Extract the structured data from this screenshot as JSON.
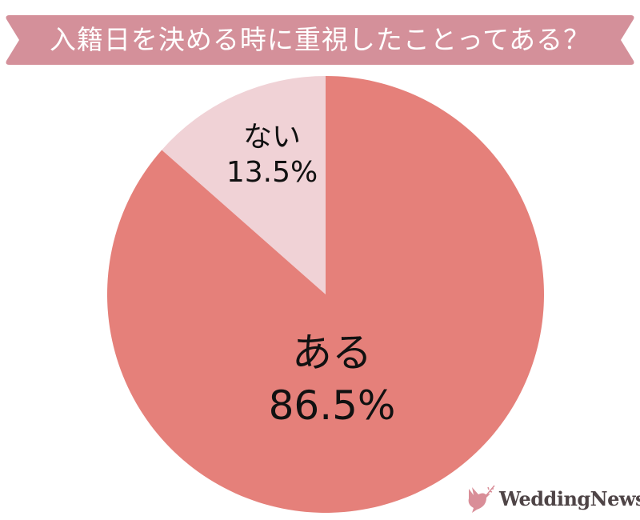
{
  "chart_data": {
    "type": "pie",
    "title": "入籍日を決める時に重視したことってある？",
    "start_angle": "12 o'clock",
    "direction": "counterclockwise for ない",
    "slices": [
      {
        "label": "ない",
        "value": 13.5,
        "value_label": "13.5%",
        "color": "#f0d2d6"
      },
      {
        "label": "ある",
        "value": 86.5,
        "value_label": "86.5%",
        "color": "#e5807a"
      }
    ]
  },
  "banner_color": "#d4909a",
  "logo": {
    "text": "WeddingNews",
    "color": "#d98e98"
  }
}
